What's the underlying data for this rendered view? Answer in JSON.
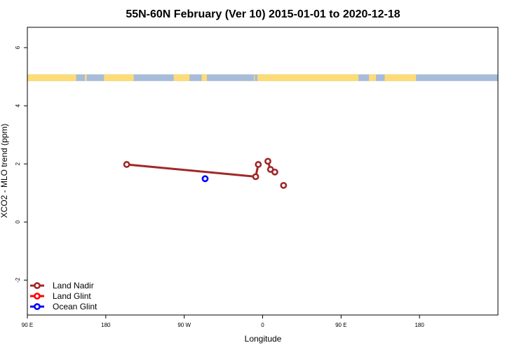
{
  "chart_data": {
    "type": "scatter",
    "title": "55N-60N February (Ver 10)   2015-01-01 to 2020-12-18",
    "xlabel": "Longitude",
    "ylabel": "XCO2 - MLO trend (ppm)",
    "xlim": [
      -90,
      180
    ],
    "ylim": [
      -3.2,
      6.7
    ],
    "x_ticks": [
      {
        "value": -90,
        "label": "90 E"
      },
      {
        "value": -45,
        "label": "180"
      },
      {
        "value": 0,
        "label": "90 W"
      },
      {
        "value": 45,
        "label": "0"
      },
      {
        "value": 90,
        "label": "90 E"
      },
      {
        "value": 135,
        "label": "180"
      }
    ],
    "y_ticks": [
      {
        "value": -2,
        "label": "-2"
      },
      {
        "value": 0,
        "label": "0"
      },
      {
        "value": 2,
        "label": "2"
      },
      {
        "value": 4,
        "label": "4"
      },
      {
        "value": 6,
        "label": "6"
      }
    ],
    "land_band": {
      "y_range": [
        4.85,
        5.08
      ],
      "ocean_color": "#a7bcd9",
      "land_color": "#fddc78",
      "land_segments": [
        [
          -90,
          -62
        ],
        [
          -57,
          -56
        ],
        [
          -46,
          -29
        ],
        [
          -6,
          3
        ],
        [
          10,
          13
        ],
        [
          40,
          40.5
        ],
        [
          42,
          100
        ],
        [
          106,
          110
        ],
        [
          115,
          133
        ]
      ]
    },
    "series": [
      {
        "name": "Land Nadir",
        "color": "#a02828",
        "line": true,
        "points": [
          {
            "x": -33,
            "y": 1.98,
            "connect": false
          },
          {
            "x": 41,
            "y": 1.56,
            "connect": true
          },
          {
            "x": 42.5,
            "y": 1.98,
            "connect": true
          },
          {
            "x": 48,
            "y": 2.09,
            "connect": false
          },
          {
            "x": 49.5,
            "y": 1.81,
            "connect": true
          },
          {
            "x": 52,
            "y": 1.72,
            "connect": false
          },
          {
            "x": 57,
            "y": 1.26,
            "connect": false
          }
        ]
      },
      {
        "name": "Land Glint",
        "color": "#ff0000",
        "line": true,
        "points": []
      },
      {
        "name": "Ocean Glint",
        "color": "#0000ff",
        "line": true,
        "points": [
          {
            "x": 12,
            "y": 1.49,
            "connect": false
          }
        ]
      }
    ],
    "legend_position": "bottom-left",
    "grid": false
  }
}
